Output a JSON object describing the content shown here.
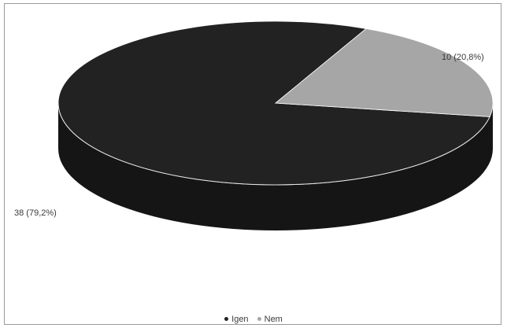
{
  "chart_data": {
    "type": "pie",
    "style": "3d",
    "categories": [
      "Igen",
      "Nem"
    ],
    "values": [
      38,
      10
    ],
    "percentages": [
      79.2,
      20.8
    ],
    "data_labels": [
      "38 (79,2%)",
      "10 (20,8%)"
    ],
    "colors": [
      "#222222",
      "#a6a6a6"
    ],
    "legend_position": "bottom"
  },
  "legend": {
    "items": [
      {
        "label": "Igen",
        "color": "#222222"
      },
      {
        "label": "Nem",
        "color": "#a6a6a6"
      }
    ]
  }
}
